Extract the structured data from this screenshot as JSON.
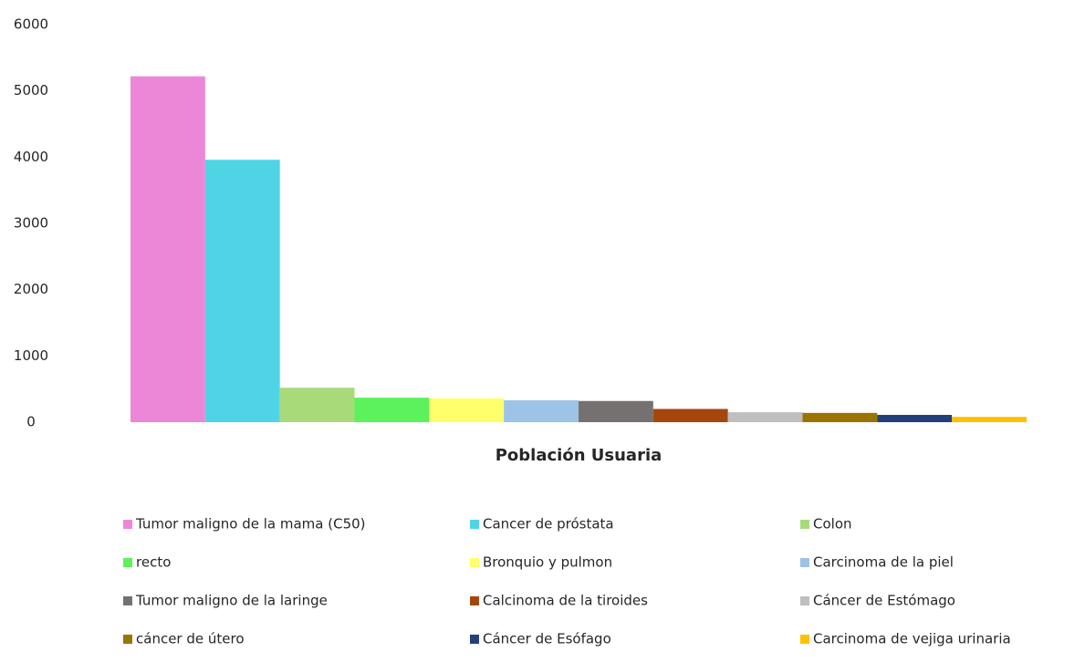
{
  "chart_data": {
    "type": "bar",
    "categories": [
      "Población Usuaria"
    ],
    "series": [
      {
        "name": "Tumor maligno de la mama (C50)",
        "color": "#ec87d8",
        "values": [
          5220
        ]
      },
      {
        "name": "Cancer de próstata",
        "color": "#4fd4e6",
        "values": [
          3960
        ]
      },
      {
        "name": "Colon",
        "color": "#a9da7a",
        "values": [
          520
        ]
      },
      {
        "name": "recto",
        "color": "#5cf25c",
        "values": [
          370
        ]
      },
      {
        "name": "Bronquio y pulmon",
        "color": "#ffff6b",
        "values": [
          360
        ]
      },
      {
        "name": "Carcinoma de la piel",
        "color": "#9dc3e6",
        "values": [
          330
        ]
      },
      {
        "name": "Tumor maligno de la laringe",
        "color": "#767171",
        "values": [
          320
        ]
      },
      {
        "name": "Calcinoma de la tiroides",
        "color": "#a5470c",
        "values": [
          200
        ]
      },
      {
        "name": "Cáncer de Estómago",
        "color": "#bfbfbf",
        "values": [
          150
        ]
      },
      {
        "name": "cáncer de útero",
        "color": "#9a7402",
        "values": [
          140
        ]
      },
      {
        "name": "Cáncer de Esófago",
        "color": "#23407a",
        "values": [
          110
        ]
      },
      {
        "name": "Carcinoma de vejiga urinaria",
        "color": "#ffc000",
        "values": [
          80
        ]
      }
    ],
    "ylim": [
      0,
      6000
    ],
    "yticks": [
      0,
      1000,
      2000,
      3000,
      4000,
      5000,
      6000
    ],
    "grid": false,
    "legend": "bottom"
  }
}
